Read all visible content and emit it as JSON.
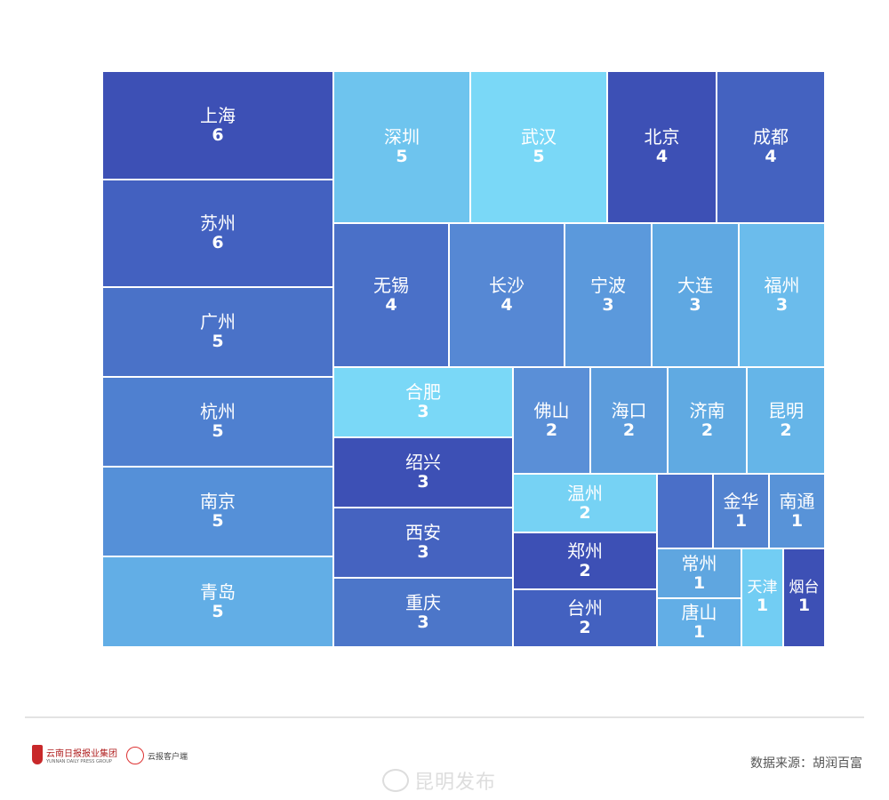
{
  "chart_data": {
    "type": "treemap",
    "title": "",
    "cells": [
      {
        "label": "上海",
        "value": 6,
        "color": "#3d50b5"
      },
      {
        "label": "苏州",
        "value": 6,
        "color": "#4361c0"
      },
      {
        "label": "广州",
        "value": 5,
        "color": "#4a72c8"
      },
      {
        "label": "杭州",
        "value": 5,
        "color": "#4f80d0"
      },
      {
        "label": "南京",
        "value": 5,
        "color": "#5590d8"
      },
      {
        "label": "青岛",
        "value": 5,
        "color": "#62aee6"
      },
      {
        "label": "深圳",
        "value": 5,
        "color": "#6ec4ee"
      },
      {
        "label": "武汉",
        "value": 5,
        "color": "#7ad8f7"
      },
      {
        "label": "北京",
        "value": 4,
        "color": "#3d50b5"
      },
      {
        "label": "成都",
        "value": 4,
        "color": "#4462c0"
      },
      {
        "label": "无锡",
        "value": 4,
        "color": "#4a70c8"
      },
      {
        "label": "长沙",
        "value": 4,
        "color": "#5688d4"
      },
      {
        "label": "宁波",
        "value": 3,
        "color": "#5b99dc"
      },
      {
        "label": "大连",
        "value": 3,
        "color": "#5fa8e2"
      },
      {
        "label": "福州",
        "value": 3,
        "color": "#6bbcec"
      },
      {
        "label": "合肥",
        "value": 3,
        "color": "#7ad8f7"
      },
      {
        "label": "绍兴",
        "value": 3,
        "color": "#3d50b5"
      },
      {
        "label": "西安",
        "value": 3,
        "color": "#4563c0"
      },
      {
        "label": "重庆",
        "value": 3,
        "color": "#4c76c9"
      },
      {
        "label": "佛山",
        "value": 2,
        "color": "#5a8fd7"
      },
      {
        "label": "海口",
        "value": 2,
        "color": "#5c9cdc"
      },
      {
        "label": "济南",
        "value": 2,
        "color": "#60aae2"
      },
      {
        "label": "昆明",
        "value": 2,
        "color": "#65b5e8"
      },
      {
        "label": "温州",
        "value": 2,
        "color": "#76d2f4"
      },
      {
        "label": "郑州",
        "value": 2,
        "color": "#3d50b5"
      },
      {
        "label": "台州",
        "value": 2,
        "color": "#4361c0"
      },
      {
        "label": "",
        "value": null,
        "color": "#4a6fc8"
      },
      {
        "label": "金华",
        "value": 1,
        "color": "#5383d0"
      },
      {
        "label": "南通",
        "value": 1,
        "color": "#5893d8"
      },
      {
        "label": "常州",
        "value": 1,
        "color": "#5fa6e0"
      },
      {
        "label": "唐山",
        "value": 1,
        "color": "#62aee6"
      },
      {
        "label": "天津",
        "value": 1,
        "color": "#72cdf3"
      },
      {
        "label": "烟台",
        "value": 1,
        "color": "#3d50b5"
      }
    ]
  },
  "footer": {
    "logo1_text": "云南日报报业集团",
    "logo1_sub": "YUNNAN DAILY PRESS GROUP",
    "logo2_text": "云报客户端",
    "source": "数据来源：胡润百富",
    "watermark": "昆明发布"
  }
}
